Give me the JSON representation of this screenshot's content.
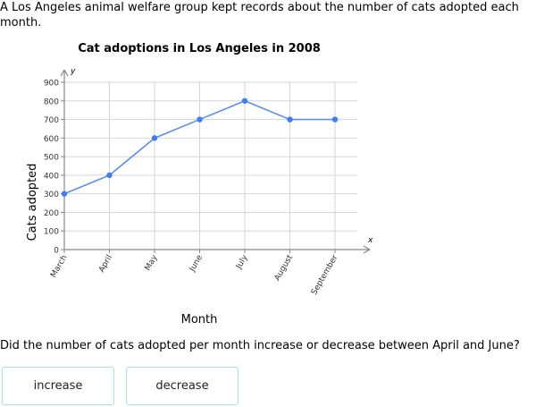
{
  "intro": "A Los Angeles animal welfare group kept records about the number of cats adopted each month.",
  "question": "Did the number of cats adopted per month increase or decrease between April and June?",
  "choices": [
    "increase",
    "decrease"
  ],
  "colors": {
    "line": "#5b8ff0",
    "point": "#3d7ef5",
    "grid": "#d6d6d6",
    "axis": "#888888",
    "choice_border": "#a7dff0"
  },
  "chart_data": {
    "type": "line",
    "title": "Cat adoptions in Los Angeles in 2008",
    "xlabel": "Month",
    "ylabel": "Cats adopted",
    "x_axis_letter": "x",
    "y_axis_letter": "y",
    "categories": [
      "March",
      "April",
      "May",
      "June",
      "July",
      "August",
      "September"
    ],
    "values": [
      300,
      400,
      600,
      700,
      800,
      700,
      700
    ],
    "yticks": [
      0,
      100,
      200,
      300,
      400,
      500,
      600,
      700,
      800,
      900
    ],
    "ylim": [
      0,
      900
    ],
    "grid": true
  }
}
